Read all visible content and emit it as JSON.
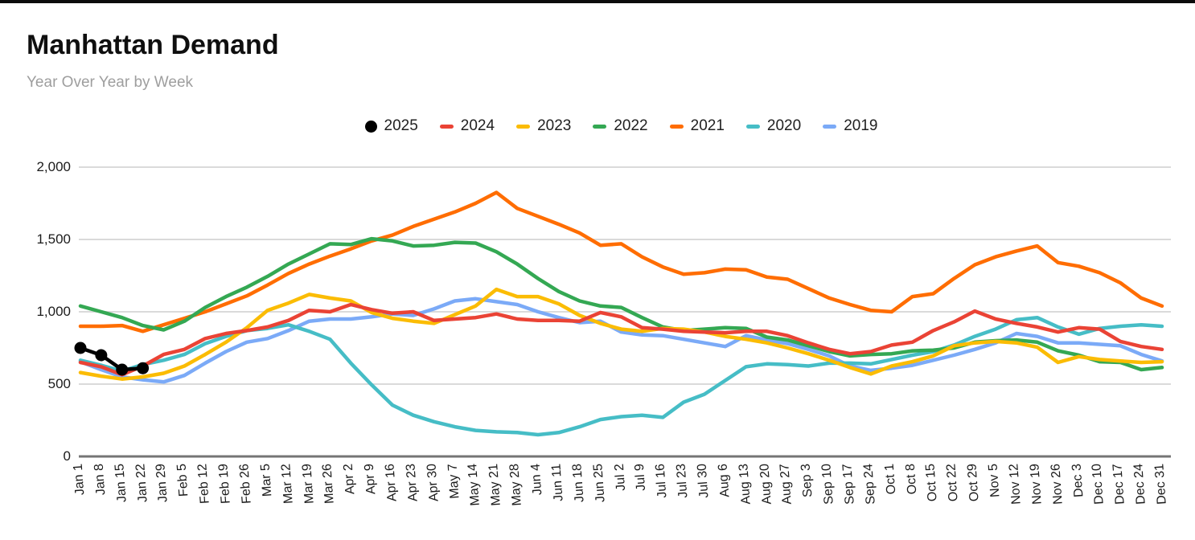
{
  "page": {
    "title": "Manhattan Demand",
    "subtitle": "Year Over Year by Week"
  },
  "chart_data": {
    "type": "line",
    "title": "Manhattan Demand",
    "subtitle": "Year Over Year by Week",
    "xlabel": "",
    "ylabel": "",
    "ylim": [
      0,
      2000
    ],
    "yticks": [
      0,
      500,
      1000,
      1500,
      2000
    ],
    "ytick_labels": [
      "0",
      "500",
      "1,000",
      "1,500",
      "2,000"
    ],
    "grid": true,
    "legend_position": "top",
    "gridline_color": "#dadada",
    "baseline_color": "#757575",
    "categories": [
      "Jan 1",
      "Jan 8",
      "Jan 15",
      "Jan 22",
      "Jan 29",
      "Feb 5",
      "Feb 12",
      "Feb 19",
      "Feb 26",
      "Mar 5",
      "Mar 12",
      "Mar 19",
      "Mar 26",
      "Apr 2",
      "Apr 9",
      "Apr 16",
      "Apr 23",
      "Apr 30",
      "May 7",
      "May 14",
      "May 21",
      "May 28",
      "Jun 4",
      "Jun 11",
      "Jun 18",
      "Jun 25",
      "Jul 2",
      "Jul 9",
      "Jul 16",
      "Jul 23",
      "Jul 30",
      "Aug 6",
      "Aug 13",
      "Aug 20",
      "Aug 27",
      "Sep 3",
      "Sep 10",
      "Sep 17",
      "Sep 24",
      "Oct 1",
      "Oct 8",
      "Oct 15",
      "Oct 22",
      "Oct 29",
      "Nov 5",
      "Nov 12",
      "Nov 19",
      "Nov 26",
      "Dec 3",
      "Dec 10",
      "Dec 17",
      "Dec 24",
      "Dec 31"
    ],
    "series": [
      {
        "name": "2025",
        "color": "#000000",
        "marker": "circle",
        "values": [
          750,
          700,
          600,
          610
        ]
      },
      {
        "name": "2024",
        "color": "#ea4335",
        "values": [
          650,
          620,
          565,
          625,
          705,
          740,
          815,
          850,
          870,
          895,
          940,
          1010,
          1000,
          1050,
          1015,
          990,
          1000,
          940,
          950,
          960,
          985,
          950,
          940,
          940,
          935,
          995,
          965,
          890,
          880,
          865,
          860,
          855,
          865,
          865,
          835,
          785,
          740,
          710,
          725,
          770,
          790,
          870,
          930,
          1005,
          950,
          920,
          895,
          860,
          890,
          880,
          795,
          760,
          740
        ]
      },
      {
        "name": "2023",
        "color": "#fbbc04",
        "values": [
          580,
          555,
          535,
          550,
          575,
          625,
          705,
          790,
          890,
          1010,
          1060,
          1120,
          1095,
          1075,
          995,
          955,
          935,
          920,
          980,
          1040,
          1155,
          1105,
          1105,
          1055,
          975,
          920,
          880,
          865,
          885,
          880,
          860,
          830,
          810,
          785,
          750,
          710,
          665,
          615,
          570,
          625,
          655,
          695,
          765,
          785,
          795,
          785,
          755,
          650,
          690,
          670,
          660,
          650,
          655
        ]
      },
      {
        "name": "2022",
        "color": "#34a853",
        "values": [
          1040,
          1000,
          960,
          905,
          875,
          935,
          1030,
          1105,
          1170,
          1245,
          1330,
          1400,
          1470,
          1465,
          1505,
          1490,
          1455,
          1460,
          1480,
          1475,
          1415,
          1330,
          1230,
          1140,
          1075,
          1040,
          1030,
          960,
          895,
          870,
          880,
          890,
          885,
          825,
          805,
          765,
          725,
          695,
          705,
          710,
          730,
          735,
          750,
          790,
          800,
          805,
          790,
          730,
          700,
          655,
          650,
          600,
          615
        ]
      },
      {
        "name": "2021",
        "color": "#ff6d01",
        "values": [
          900,
          900,
          905,
          865,
          910,
          955,
          1000,
          1055,
          1110,
          1185,
          1265,
          1330,
          1385,
          1435,
          1490,
          1530,
          1590,
          1640,
          1690,
          1750,
          1825,
          1715,
          1660,
          1605,
          1545,
          1460,
          1470,
          1380,
          1310,
          1260,
          1270,
          1295,
          1290,
          1240,
          1225,
          1160,
          1095,
          1050,
          1010,
          1000,
          1105,
          1125,
          1230,
          1325,
          1380,
          1420,
          1455,
          1340,
          1315,
          1270,
          1200,
          1095,
          1040
        ]
      },
      {
        "name": "2020",
        "color": "#46bdc6",
        "values": [
          665,
          630,
          590,
          635,
          665,
          705,
          780,
          830,
          870,
          885,
          910,
          865,
          810,
          645,
          495,
          355,
          285,
          240,
          205,
          180,
          170,
          165,
          150,
          165,
          205,
          255,
          275,
          285,
          270,
          375,
          430,
          525,
          620,
          640,
          635,
          625,
          645,
          645,
          640,
          670,
          700,
          725,
          770,
          830,
          880,
          945,
          960,
          895,
          845,
          885,
          900,
          910,
          900
        ]
      },
      {
        "name": "2019",
        "color": "#7baaf7",
        "values": [
          655,
          600,
          550,
          530,
          515,
          560,
          645,
          725,
          790,
          815,
          870,
          935,
          950,
          950,
          965,
          985,
          975,
          1020,
          1075,
          1090,
          1070,
          1050,
          1000,
          960,
          925,
          935,
          860,
          840,
          835,
          810,
          785,
          760,
          835,
          805,
          780,
          740,
          695,
          625,
          595,
          610,
          630,
          665,
          700,
          740,
          785,
          850,
          830,
          785,
          785,
          775,
          765,
          705,
          660
        ]
      }
    ]
  }
}
